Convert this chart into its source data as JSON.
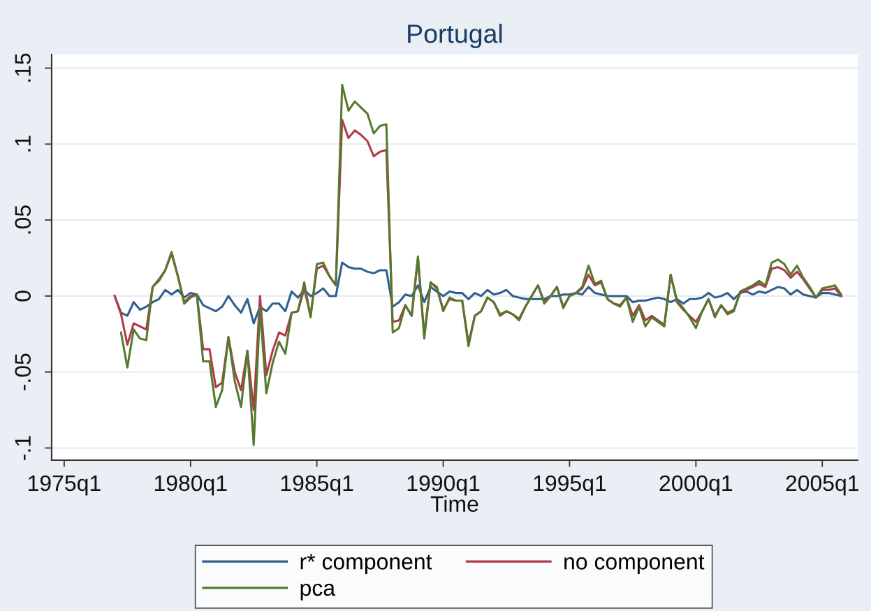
{
  "chart_data": {
    "type": "line",
    "title": "Portugal",
    "xlabel": "Time",
    "categories": [
      "1975q1",
      null,
      null,
      null,
      null,
      null,
      null,
      null,
      null,
      null,
      null,
      null,
      null,
      null,
      null,
      null,
      null,
      null,
      null,
      null,
      "1980q1",
      null,
      null,
      null,
      null,
      null,
      null,
      null,
      null,
      null,
      null,
      null,
      null,
      null,
      null,
      null,
      null,
      null,
      null,
      null,
      "1985q1",
      null,
      null,
      null,
      null,
      null,
      null,
      null,
      null,
      null,
      null,
      null,
      null,
      null,
      null,
      null,
      null,
      null,
      null,
      null,
      "1990q1",
      null,
      null,
      null,
      null,
      null,
      null,
      null,
      null,
      null,
      null,
      null,
      null,
      null,
      null,
      null,
      null,
      null,
      null,
      null,
      "1995q1",
      null,
      null,
      null,
      null,
      null,
      null,
      null,
      null,
      null,
      null,
      null,
      null,
      null,
      null,
      null,
      null,
      null,
      null,
      null,
      "2000q1",
      null,
      null,
      null,
      null,
      null,
      null,
      null,
      null,
      null,
      null,
      null,
      null,
      null,
      null,
      null,
      null,
      null,
      null,
      null,
      "2005q1",
      null,
      null,
      null
    ],
    "series": [
      {
        "name": "r* component",
        "color": "#2f5f8f",
        "values": [
          null,
          null,
          null,
          null,
          null,
          null,
          null,
          null,
          0.0,
          -0.011,
          -0.013,
          -0.004,
          -0.009,
          -0.007,
          -0.004,
          -0.002,
          0.004,
          0.001,
          0.004,
          -0.001,
          0.002,
          0.001,
          -0.006,
          -0.008,
          -0.01,
          -0.007,
          0.0,
          -0.006,
          -0.011,
          -0.002,
          -0.018,
          -0.007,
          -0.01,
          -0.005,
          -0.005,
          -0.01,
          0.003,
          -0.001,
          0.004,
          0.0,
          0.002,
          0.005,
          0.0,
          0.0,
          0.022,
          0.019,
          0.018,
          0.018,
          0.016,
          0.015,
          0.017,
          0.017,
          -0.007,
          -0.004,
          0.001,
          0.0,
          0.007,
          -0.004,
          0.006,
          0.003,
          0.0,
          0.003,
          0.002,
          0.002,
          -0.002,
          0.002,
          0.0,
          0.004,
          0.001,
          0.002,
          0.004,
          0.0,
          -0.001,
          -0.002,
          -0.002,
          -0.002,
          -0.002,
          0.0,
          0.0,
          0.001,
          0.001,
          0.002,
          0.001,
          0.006,
          0.002,
          0.001,
          0.0,
          0.0,
          0.0,
          0.0,
          -0.004,
          -0.003,
          -0.003,
          -0.002,
          -0.001,
          -0.002,
          -0.004,
          -0.002,
          -0.005,
          -0.002,
          -0.002,
          -0.001,
          0.002,
          -0.001,
          0.0,
          0.002,
          -0.002,
          0.002,
          0.003,
          0.001,
          0.003,
          0.002,
          0.004,
          0.006,
          0.005,
          0.001,
          0.004,
          0.001,
          0.0,
          -0.001,
          0.002,
          0.002,
          0.001,
          0.0
        ]
      },
      {
        "name": "no component",
        "color": "#b03a48",
        "values": [
          null,
          null,
          null,
          null,
          null,
          null,
          null,
          null,
          0.0,
          -0.012,
          -0.032,
          -0.018,
          -0.02,
          -0.022,
          0.006,
          0.011,
          0.017,
          0.028,
          0.013,
          -0.004,
          0.0,
          0.001,
          -0.035,
          -0.035,
          -0.06,
          -0.057,
          -0.027,
          -0.05,
          -0.062,
          -0.036,
          -0.075,
          0.0,
          -0.052,
          -0.036,
          -0.024,
          -0.026,
          -0.011,
          -0.01,
          0.005,
          -0.013,
          0.018,
          0.02,
          0.013,
          0.007,
          0.116,
          0.104,
          0.109,
          0.106,
          0.102,
          0.092,
          0.095,
          0.096,
          -0.017,
          -0.016,
          -0.006,
          -0.013,
          0.025,
          -0.026,
          0.009,
          0.005,
          -0.009,
          -0.002,
          -0.003,
          -0.003,
          -0.031,
          -0.013,
          -0.01,
          -0.001,
          -0.004,
          -0.013,
          -0.01,
          -0.012,
          -0.015,
          -0.007,
          0.0,
          0.007,
          -0.004,
          0.0,
          0.006,
          -0.007,
          0.0,
          0.002,
          0.005,
          0.014,
          0.007,
          0.009,
          -0.002,
          -0.005,
          -0.006,
          -0.001,
          -0.013,
          -0.006,
          -0.016,
          -0.013,
          -0.016,
          -0.019,
          0.014,
          -0.004,
          -0.009,
          -0.013,
          -0.017,
          -0.01,
          -0.002,
          -0.013,
          -0.006,
          -0.011,
          -0.009,
          0.002,
          0.004,
          0.006,
          0.008,
          0.006,
          0.018,
          0.019,
          0.017,
          0.012,
          0.016,
          0.011,
          0.005,
          -0.001,
          0.004,
          0.004,
          0.005,
          0.0
        ]
      },
      {
        "name": "pca",
        "color": "#557a2f",
        "values": [
          null,
          null,
          null,
          null,
          null,
          null,
          null,
          null,
          null,
          -0.024,
          -0.047,
          -0.022,
          -0.028,
          -0.029,
          0.006,
          0.01,
          0.017,
          0.029,
          0.013,
          -0.005,
          -0.001,
          0.001,
          -0.043,
          -0.043,
          -0.073,
          -0.062,
          -0.027,
          -0.056,
          -0.073,
          -0.036,
          -0.098,
          -0.008,
          -0.064,
          -0.044,
          -0.03,
          -0.038,
          -0.011,
          -0.01,
          0.009,
          -0.014,
          0.021,
          0.022,
          0.013,
          0.007,
          0.139,
          0.122,
          0.128,
          0.124,
          0.12,
          0.107,
          0.112,
          0.113,
          -0.024,
          -0.021,
          -0.006,
          -0.013,
          0.026,
          -0.028,
          0.009,
          0.006,
          -0.01,
          -0.001,
          -0.003,
          -0.003,
          -0.033,
          -0.013,
          -0.01,
          -0.001,
          -0.004,
          -0.012,
          -0.01,
          -0.012,
          -0.016,
          -0.007,
          0.0,
          0.007,
          -0.005,
          0.0,
          0.006,
          -0.008,
          0.0,
          0.002,
          0.006,
          0.02,
          0.008,
          0.01,
          -0.002,
          -0.005,
          -0.007,
          -0.001,
          -0.017,
          -0.007,
          -0.02,
          -0.014,
          -0.017,
          -0.02,
          0.014,
          -0.003,
          -0.008,
          -0.014,
          -0.021,
          -0.01,
          -0.002,
          -0.014,
          -0.006,
          -0.012,
          -0.01,
          0.003,
          0.005,
          0.007,
          0.01,
          0.007,
          0.022,
          0.024,
          0.021,
          0.014,
          0.02,
          0.012,
          0.006,
          -0.001,
          0.005,
          0.006,
          0.007,
          0.001
        ]
      }
    ],
    "ylim": [
      -0.108,
      0.159
    ],
    "yticks": [
      {
        "value": -0.1,
        "label": "-.1"
      },
      {
        "value": -0.05,
        "label": "-.05"
      },
      0,
      {
        "value": 0.05,
        "label": ".05"
      },
      {
        "value": 0.1,
        "label": ".1"
      },
      {
        "value": 0.15,
        "label": ".15"
      }
    ],
    "grid": "y",
    "legend": "bottom"
  }
}
